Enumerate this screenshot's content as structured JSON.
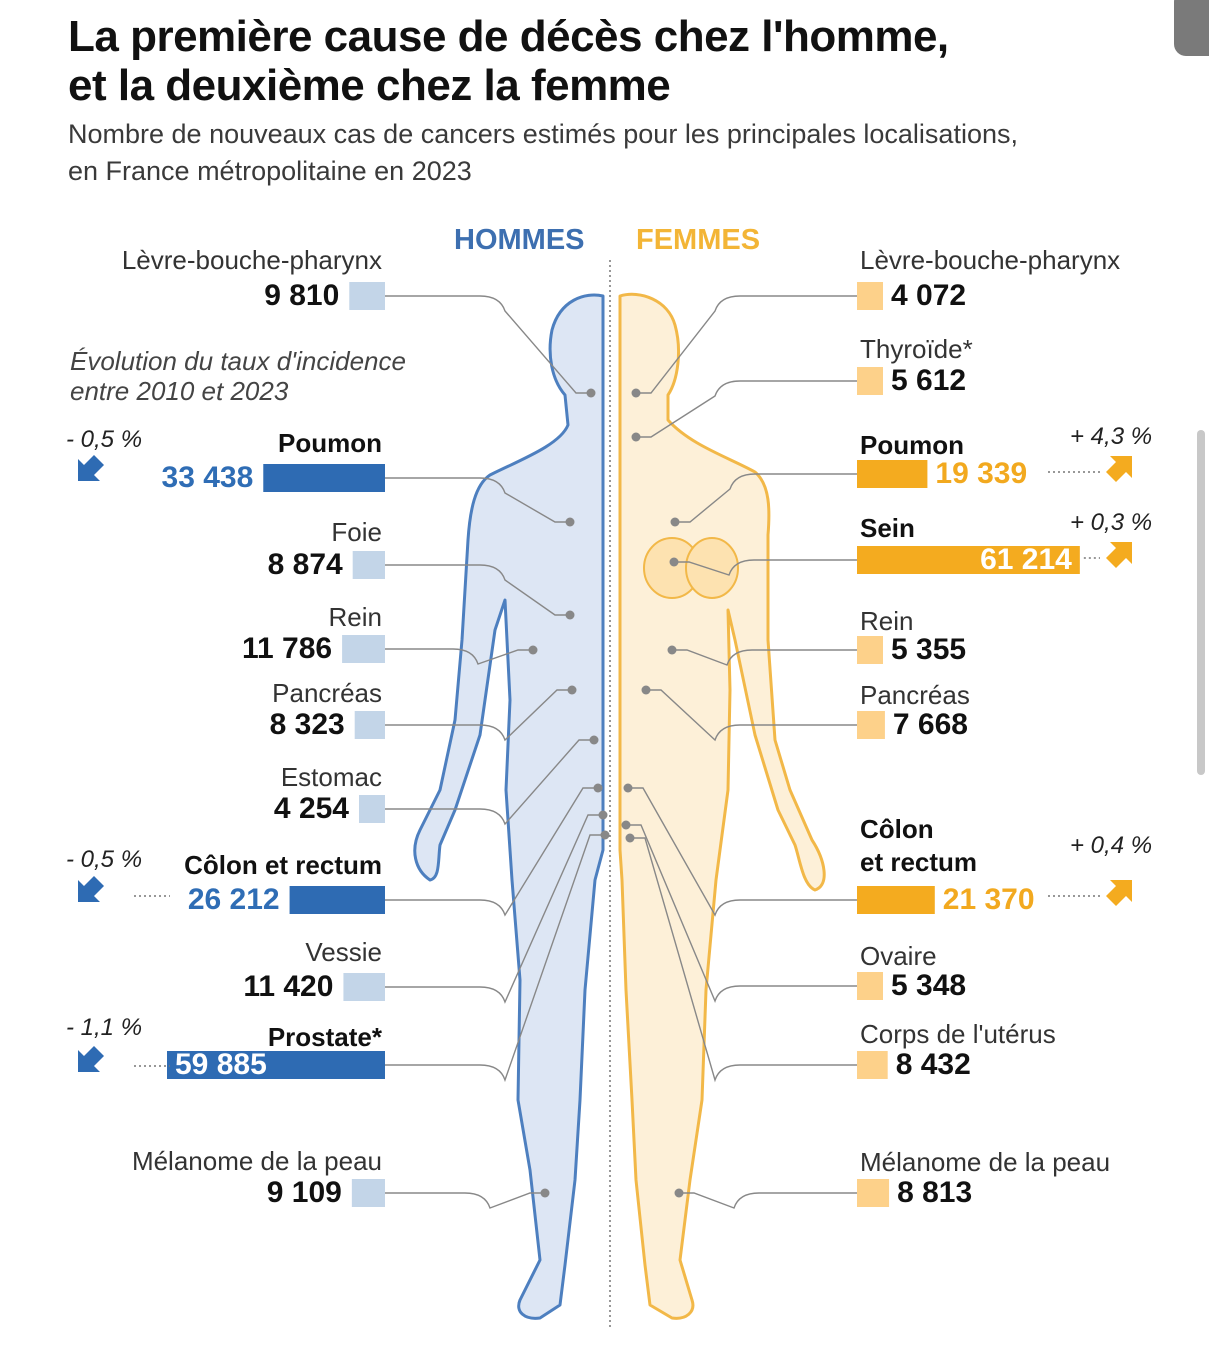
{
  "title_line1": "La première cause de décès chez l'homme,",
  "title_line2": "et la deuxième chez la femme",
  "subtitle_line1": "Nombre de nouveaux cas de cancers estimés pour les principales localisations,",
  "subtitle_line2": "en France métropolitaine en 2023",
  "heading_men": "HOMMES",
  "heading_women": "FEMMES",
  "note_line1": "Évolution du taux d'incidence",
  "note_line2": "entre 2010 et 2023",
  "colors": {
    "men_strong": "#2e6bb3",
    "men_light": "#c3d5e8",
    "women_strong": "#f4ab1f",
    "women_light": "#fdd18a",
    "connector": "#888888"
  },
  "chart_data": {
    "type": "bar",
    "men": [
      {
        "label": "Lèvre-bouche-pharynx",
        "value": 9810,
        "display": "9 810",
        "highlight": false
      },
      {
        "label": "Poumon",
        "value": 33438,
        "display": "33 438",
        "highlight": true,
        "change": "- 0,5 %"
      },
      {
        "label": "Foie",
        "value": 8874,
        "display": "8 874",
        "highlight": false
      },
      {
        "label": "Rein",
        "value": 11786,
        "display": "11 786",
        "highlight": false
      },
      {
        "label": "Pancréas",
        "value": 8323,
        "display": "8 323",
        "highlight": false
      },
      {
        "label": "Estomac",
        "value": 4254,
        "display": "4 254",
        "highlight": false
      },
      {
        "label": "Côlon et rectum",
        "value": 26212,
        "display": "26 212",
        "highlight": true,
        "change": "- 0,5 %"
      },
      {
        "label": "Vessie",
        "value": 11420,
        "display": "11 420",
        "highlight": false
      },
      {
        "label": "Prostate*",
        "value": 59885,
        "display": "59 885",
        "highlight": true,
        "change": "- 1,1 %"
      },
      {
        "label": "Mélanome de la peau",
        "value": 9109,
        "display": "9 109",
        "highlight": false
      }
    ],
    "women": [
      {
        "label": "Lèvre-bouche-pharynx",
        "value": 4072,
        "display": "4 072",
        "highlight": false
      },
      {
        "label": "Thyroïde*",
        "value": 5612,
        "display": "5 612",
        "highlight": false
      },
      {
        "label": "Poumon",
        "value": 19339,
        "display": "19 339",
        "highlight": true,
        "change": "+ 4,3 %"
      },
      {
        "label": "Sein",
        "value": 61214,
        "display": "61 214",
        "highlight": true,
        "change": "+ 0,3 %"
      },
      {
        "label": "Rein",
        "value": 5355,
        "display": "5 355",
        "highlight": false
      },
      {
        "label": "Pancréas",
        "value": 7668,
        "display": "7 668",
        "highlight": false
      },
      {
        "label": "Côlon et rectum",
        "value": 21370,
        "display": "21 370",
        "highlight": true,
        "change": "+ 0,4 %"
      },
      {
        "label": "Ovaire",
        "value": 5348,
        "display": "5 348",
        "highlight": false
      },
      {
        "label": "Corps de l'utérus",
        "value": 8432,
        "display": "8 432",
        "highlight": false
      },
      {
        "label": "Mélanome de la peau",
        "value": 8813,
        "display": "8 813",
        "highlight": false
      }
    ]
  }
}
